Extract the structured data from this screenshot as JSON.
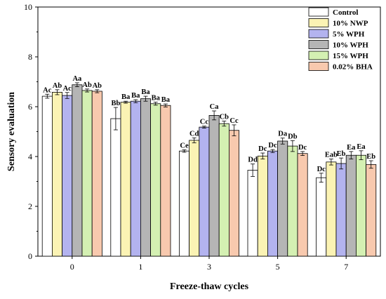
{
  "chart_data": {
    "type": "bar",
    "xlabel": "Freeze-thaw cycles",
    "ylabel": "Sensory evaluation",
    "ylim": [
      0,
      10
    ],
    "yticks": [
      "0",
      "2",
      "4",
      "6",
      "8",
      "10"
    ],
    "categories": [
      "0",
      "1",
      "3",
      "5",
      "7"
    ],
    "legend_position": "top-right",
    "series": [
      {
        "name": "Control",
        "color": "#ffffff",
        "values": [
          6.42,
          5.52,
          4.22,
          3.45,
          3.15
        ],
        "errors": [
          0.08,
          0.45,
          0.05,
          0.25,
          0.18
        ],
        "labels": [
          "Ac",
          "Bb",
          "Ce",
          "Dd",
          "Dc"
        ]
      },
      {
        "name": "10% NWP",
        "color": "#fbf3b4",
        "values": [
          6.58,
          6.18,
          4.65,
          4.02,
          3.78
        ],
        "errors": [
          0.1,
          0.04,
          0.1,
          0.12,
          0.12
        ],
        "labels": [
          "Ab",
          "Ba",
          "Cd",
          "Dc",
          "Eab"
        ]
      },
      {
        "name": "5% WPH",
        "color": "#b3b3ef",
        "values": [
          6.45,
          6.22,
          5.18,
          4.22,
          3.72
        ],
        "errors": [
          0.12,
          0.06,
          0.04,
          0.06,
          0.22
        ],
        "labels": [
          "Ac",
          "Ba",
          "Cc",
          "Dc",
          "Eb"
        ]
      },
      {
        "name": "10% WPH",
        "color": "#b5b5b5",
        "values": [
          6.88,
          6.32,
          5.65,
          4.62,
          4.05
        ],
        "errors": [
          0.08,
          0.1,
          0.18,
          0.12,
          0.15
        ],
        "labels": [
          "Aa",
          "Ba",
          "Ca",
          "Da",
          "Ea"
        ]
      },
      {
        "name": "15% WPH",
        "color": "#d4f0b2",
        "values": [
          6.65,
          6.12,
          5.32,
          4.42,
          4.05
        ],
        "errors": [
          0.06,
          0.06,
          0.1,
          0.22,
          0.18
        ],
        "labels": [
          "Ab",
          "Ba",
          "Cb",
          "Db",
          "Ea"
        ]
      },
      {
        "name": "0.02% BHA",
        "color": "#f8c9ae",
        "values": [
          6.62,
          6.05,
          5.05,
          4.12,
          3.68
        ],
        "errors": [
          0.06,
          0.06,
          0.22,
          0.08,
          0.15
        ],
        "labels": [
          "Ab",
          "Ba",
          "Cc",
          "Dc",
          "Eb"
        ]
      }
    ]
  }
}
